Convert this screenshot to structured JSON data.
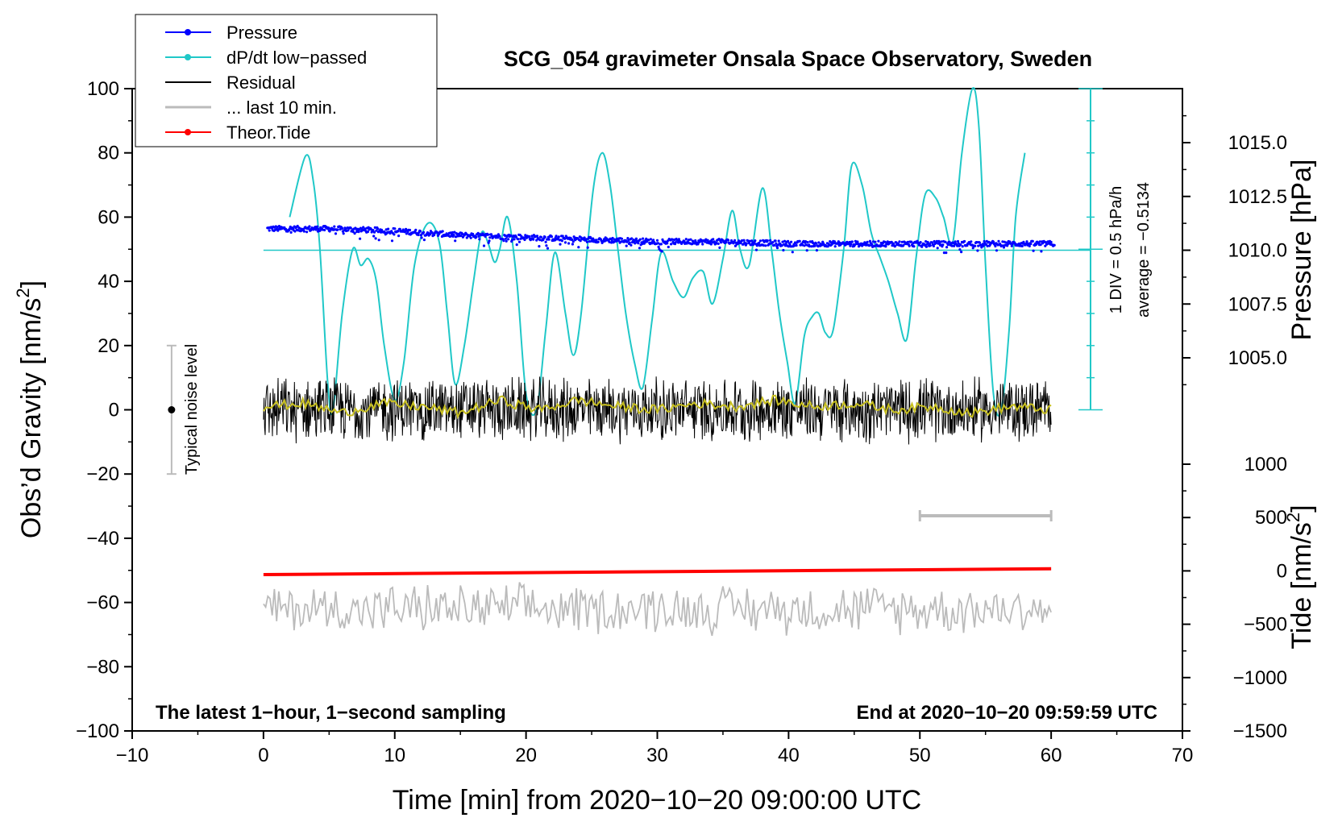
{
  "chart_data": {
    "type": "line",
    "title": "SCG_054 gravimeter Onsala Space Observatory, Sweden",
    "xlabel": "Time [min] from 2020−10−20 09:00:00 UTC",
    "ylabel_left": "Obs'd Gravity [nm/s2]",
    "ylabel_left_main": "Obs’d Gravity [nm/s",
    "ylabel_left_sup": "2",
    "ylabel_left_end": "]",
    "ylabel_right_pressure": "Pressure [hPa]",
    "ylabel_right_tide": "Tide [nm/s2]",
    "ylabel_right_tide_main": "Tide [nm/s",
    "ylabel_right_tide_sup": "2",
    "ylabel_right_tide_end": "]",
    "xlim": [
      -10,
      70
    ],
    "ylim_left": [
      -100,
      100
    ],
    "ylim_pressure": [
      1002.5,
      1017.5
    ],
    "ylim_tide": [
      -1500,
      1500
    ],
    "x_ticks": [
      "−10",
      "0",
      "10",
      "20",
      "30",
      "40",
      "50",
      "60",
      "70"
    ],
    "x_tick_values": [
      -10,
      0,
      10,
      20,
      30,
      40,
      50,
      60,
      70
    ],
    "y_ticks_left": [
      "100",
      "80",
      "60",
      "40",
      "20",
      "0",
      "−20",
      "−40",
      "−60",
      "−80",
      "−100"
    ],
    "y_tick_values_left": [
      100,
      80,
      60,
      40,
      20,
      0,
      -20,
      -40,
      -60,
      -80,
      -100
    ],
    "pressure_ticks": [
      "1015.0",
      "1012.5",
      "1010.0",
      "1007.5",
      "1005.0"
    ],
    "pressure_tick_values": [
      1015.0,
      1012.5,
      1010.0,
      1007.5,
      1005.0
    ],
    "tide_ticks": [
      "1000",
      "500",
      "0",
      "−500",
      "−1000",
      "−1500"
    ],
    "tide_tick_values": [
      1000,
      500,
      0,
      -500,
      -1000,
      -1500
    ],
    "legend": {
      "position": "top-left",
      "entries": [
        {
          "label": "Pressure",
          "color": "#0000ff",
          "marker": true
        },
        {
          "label": "dP/dt low−passed",
          "color": "#20c8c8",
          "marker": true
        },
        {
          "label": "Residual",
          "color": "#000000",
          "marker": false
        },
        {
          "label": "... last 10 min.",
          "color": "#bbbbbb",
          "marker": false
        },
        {
          "label": "Theor.Tide",
          "color": "#ff0000",
          "marker": true
        }
      ]
    },
    "annotations": {
      "noise_label": "Typical noise level",
      "div_label": "1 DIV = 0.5 hPa/h",
      "average_label": "average = −0.5134",
      "footer_left": "The latest 1−hour, 1−second sampling",
      "footer_right": "End at 2020−10−20 09:59:59 UTC"
    },
    "noise_level_range": [
      -20,
      20
    ],
    "noise_level_x": -7,
    "scale_bar_minutes": [
      50,
      60
    ],
    "scale_bar_level": -33,
    "series": [
      {
        "name": "Pressure",
        "axis": "pressure",
        "color": "#0000ff",
        "x": [
          0,
          5,
          10,
          15,
          20,
          25,
          30,
          35,
          40,
          45,
          50,
          55,
          60
        ],
        "values": [
          1011.0,
          1011.0,
          1010.9,
          1010.7,
          1010.6,
          1010.5,
          1010.4,
          1010.4,
          1010.3,
          1010.3,
          1010.3,
          1010.3,
          1010.3
        ],
        "scatter": 0.25
      },
      {
        "name": "dP/dt low-passed",
        "axis": "left",
        "color": "#20c8c8",
        "x": [
          2.0,
          3.2,
          3.8,
          4.3,
          4.9,
          5.3,
          6.0,
          6.8,
          7.4,
          8.0,
          8.6,
          9.2,
          10.0,
          10.7,
          11.5,
          12.5,
          13.4,
          14.0,
          14.6,
          15.3,
          16.0,
          16.6,
          17.1,
          17.6,
          18.0,
          18.6,
          19.3,
          20.0,
          20.8,
          21.5,
          22.2,
          23.0,
          23.6,
          24.2,
          25.1,
          25.8,
          26.4,
          27.0,
          27.6,
          28.3,
          28.9,
          29.6,
          30.3,
          31.2,
          32.0,
          32.7,
          33.5,
          34.2,
          35.0,
          35.7,
          36.3,
          37.0,
          38.0,
          38.7,
          39.3,
          39.9,
          40.5,
          41.2,
          41.8,
          42.3,
          42.8,
          43.4,
          44.2,
          44.8,
          45.6,
          46.3,
          47.0,
          47.6,
          48.3,
          49.0,
          49.7,
          50.4,
          51.2,
          51.8,
          52.5,
          53.2,
          54.0,
          54.5,
          55.0,
          55.6,
          56.2,
          56.8,
          57.3,
          58.0
        ],
        "values": [
          60,
          79,
          71,
          50,
          8,
          0,
          30,
          50,
          45,
          47,
          40,
          20,
          3,
          15,
          45,
          58,
          52,
          30,
          8,
          20,
          40,
          55,
          52,
          46,
          50,
          60,
          40,
          5,
          0,
          25,
          49,
          30,
          17,
          30,
          68,
          80,
          70,
          50,
          30,
          14,
          7,
          28,
          49,
          40,
          35,
          41,
          43,
          33,
          47,
          62,
          50,
          45,
          69,
          50,
          30,
          15,
          2,
          23,
          29,
          30,
          24,
          25,
          50,
          76,
          70,
          55,
          47,
          40,
          30,
          22,
          47,
          67,
          66,
          60,
          52,
          80,
          100,
          88,
          45,
          5,
          0,
          25,
          60,
          80
        ]
      },
      {
        "name": "Residual",
        "axis": "left",
        "color": "#000000",
        "x_start": 0,
        "x_end": 60,
        "mean": 0,
        "amplitude": 11
      },
      {
        "name": "Residual smoothed",
        "axis": "left",
        "color": "#c8c020",
        "x": [
          0,
          3,
          6,
          9,
          12,
          15,
          18,
          21,
          24,
          27,
          30,
          33,
          36,
          39,
          42,
          45,
          48,
          51,
          54,
          57,
          60
        ],
        "values": [
          1,
          2,
          -1,
          2,
          1,
          -1,
          3,
          0,
          3,
          1,
          0,
          2,
          1,
          3,
          1,
          2,
          0,
          1,
          -1,
          1,
          0
        ]
      },
      {
        "name": "... last 10 min.",
        "axis": "left",
        "color": "#bbbbbb",
        "x_start": 0,
        "x_end": 60,
        "mean": -62,
        "amplitude": 8
      },
      {
        "name": "Theor.Tide",
        "axis": "tide",
        "color": "#ff0000",
        "x": [
          0,
          60
        ],
        "values": [
          -35,
          20
        ]
      },
      {
        "name": "Pressure reference line",
        "axis": "pressure",
        "color": "#20c8c8",
        "x": [
          0,
          63
        ],
        "values": [
          1010.0,
          1010.0
        ]
      }
    ]
  }
}
